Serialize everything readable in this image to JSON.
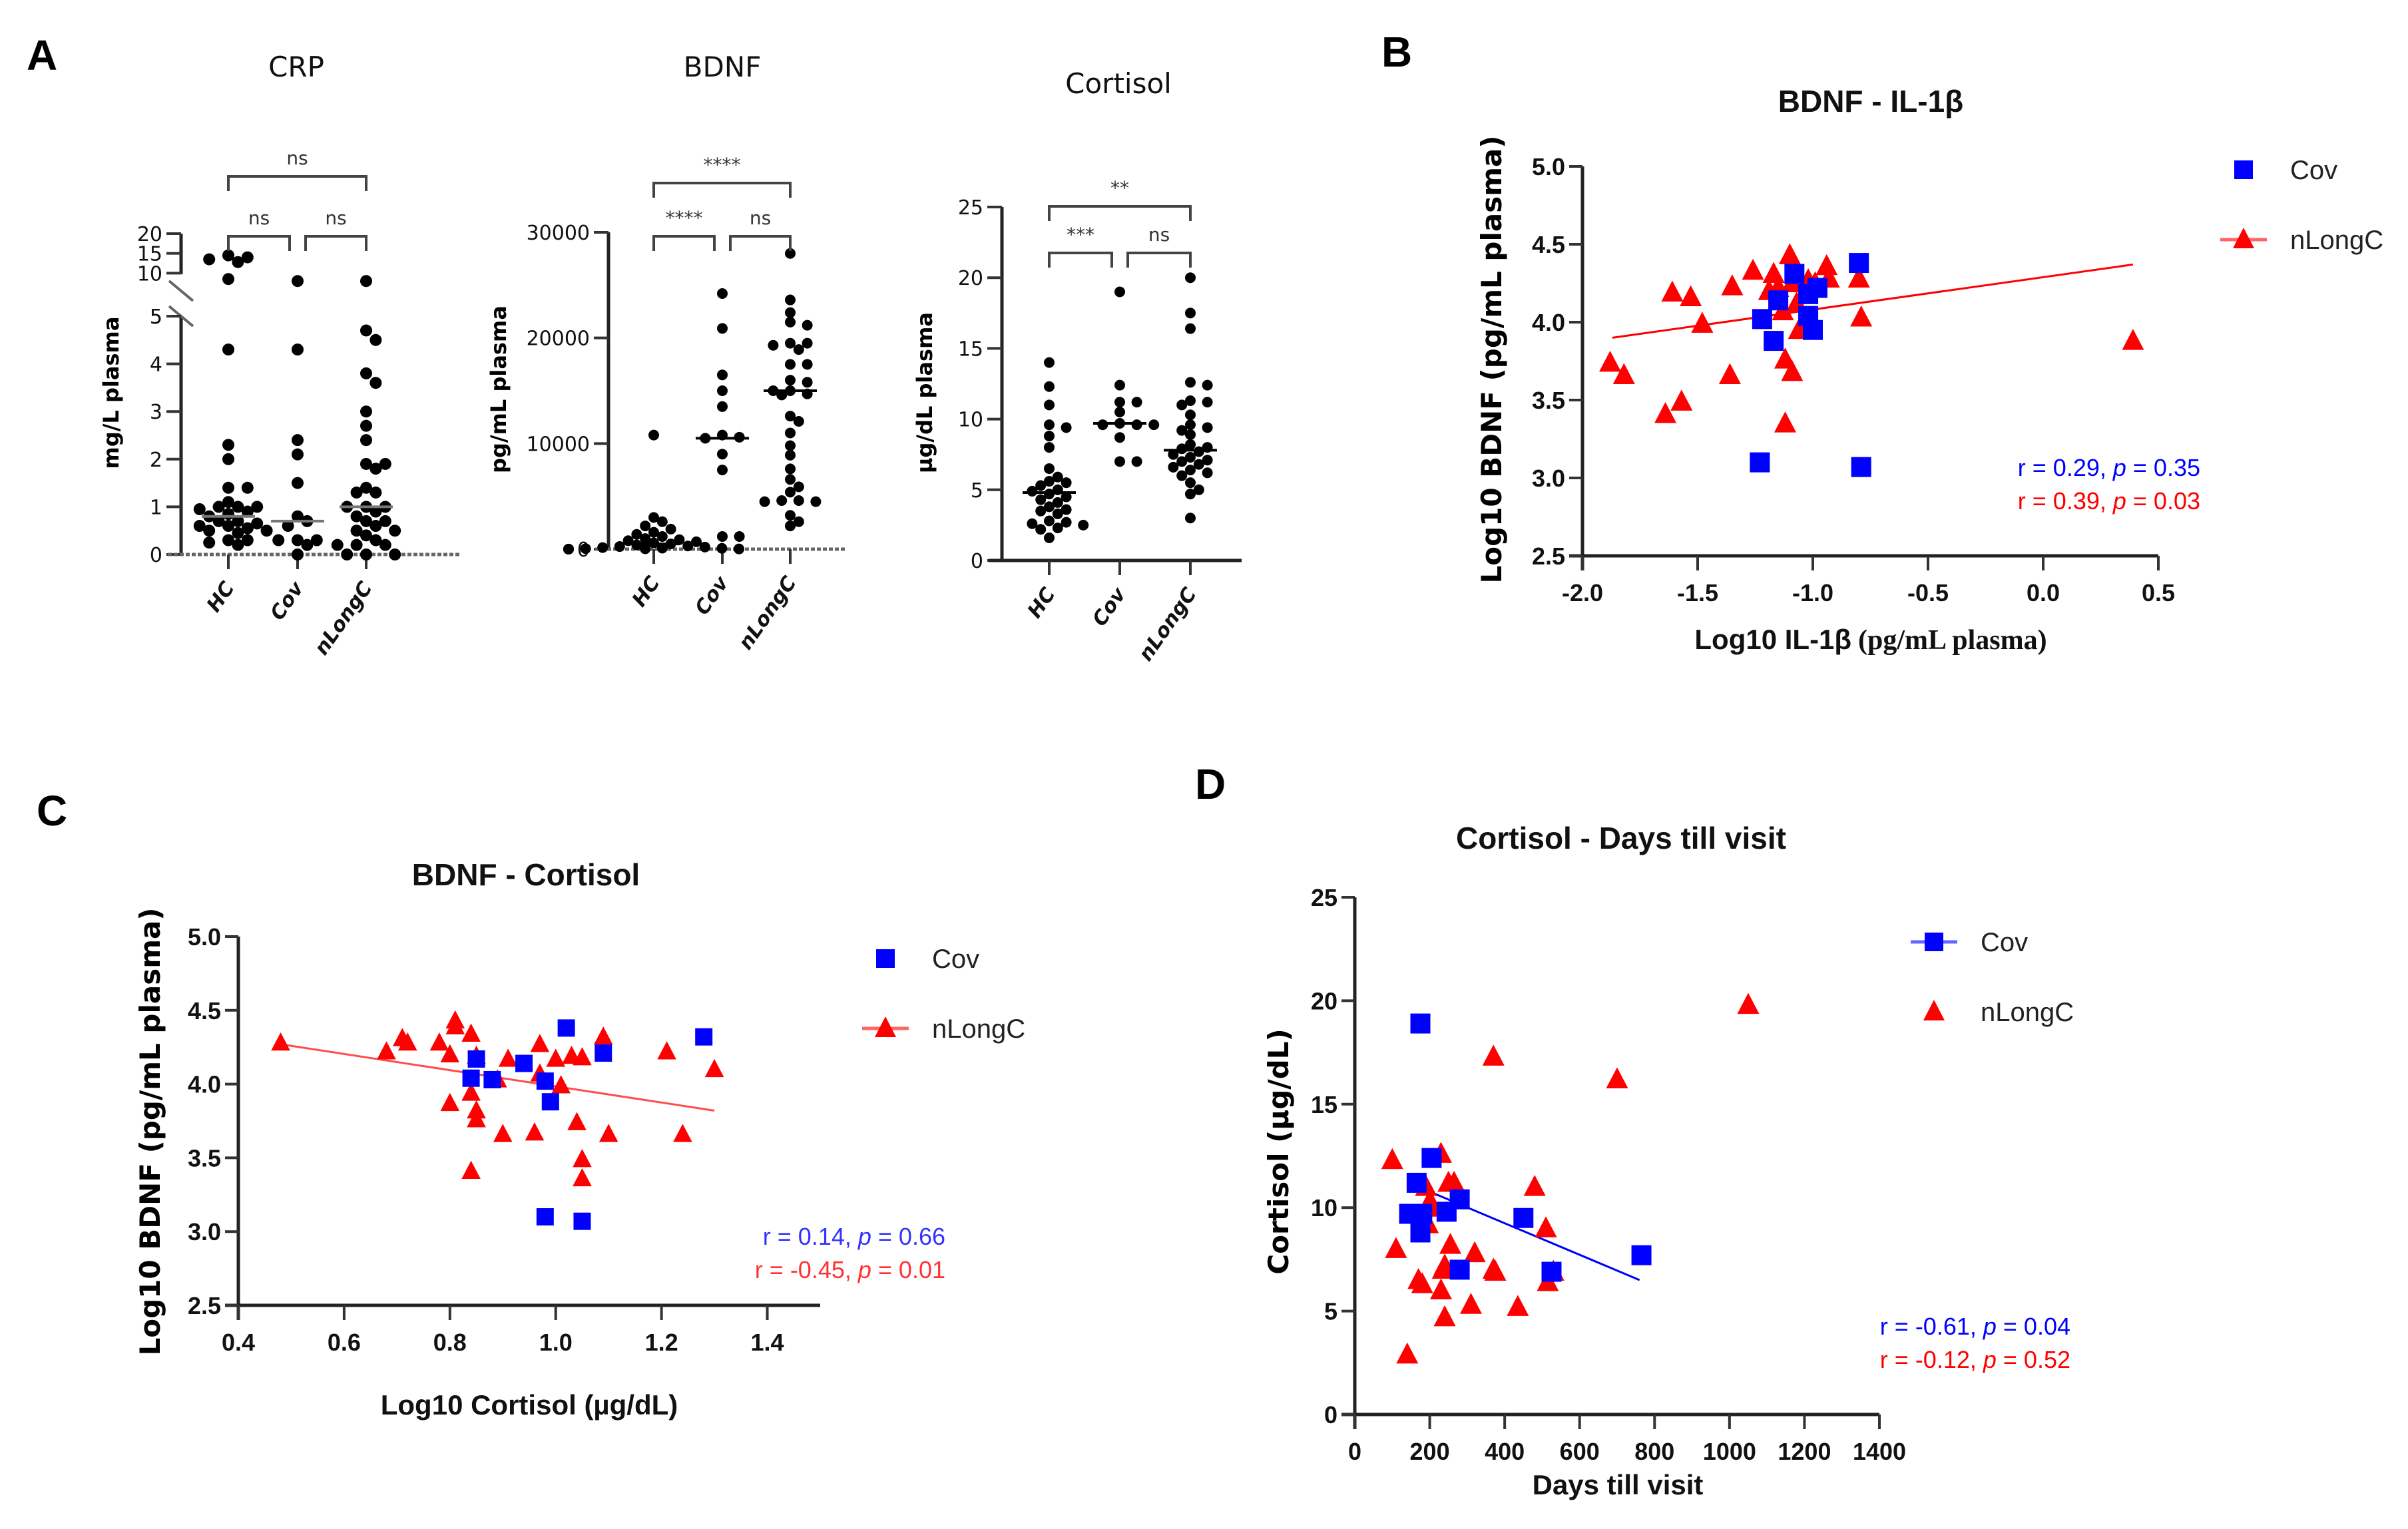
{
  "figure": {
    "panel_letters": [
      "A",
      "B",
      "C",
      "D"
    ],
    "colors": {
      "cov": "#0000ff",
      "nlongc": "#ff0000",
      "dots": "#000000"
    }
  },
  "chart_data": [
    {
      "id": "A1",
      "type": "scatter",
      "title": "CRP",
      "ylabel": "mg/L plasma",
      "categories": [
        "HC",
        "Cov",
        "nLongC"
      ],
      "y_ticks_lower": [
        0,
        1,
        2,
        3,
        4,
        5
      ],
      "y_ticks_upper": [
        5,
        10,
        15,
        20
      ],
      "axis_break": [
        5,
        5
      ],
      "ylim": [
        0,
        20
      ],
      "medians": [
        0.8,
        0.7,
        1.0
      ],
      "series": [
        {
          "name": "HC",
          "values": [
            14.5,
            14.0,
            13.5,
            12.8,
            8.5,
            4.3,
            2.3,
            2.0,
            1.4,
            1.4,
            1.1,
            1.0,
            1.0,
            1.0,
            0.95,
            0.9,
            0.85,
            0.8,
            0.7,
            0.7,
            0.65,
            0.6,
            0.6,
            0.55,
            0.5,
            0.5,
            0.45,
            0.3,
            0.3,
            0.25,
            0.2
          ]
        },
        {
          "name": "Cov",
          "values": [
            8.0,
            4.3,
            2.4,
            2.1,
            1.5,
            0.8,
            0.7,
            0.6,
            0.3,
            0.3,
            0.3,
            0.2,
            0.0
          ]
        },
        {
          "name": "nLongC",
          "values": [
            8.0,
            4.7,
            4.5,
            3.8,
            3.6,
            3.0,
            2.7,
            2.4,
            1.9,
            1.9,
            1.8,
            1.4,
            1.3,
            1.3,
            1.0,
            1.0,
            1.0,
            0.9,
            0.8,
            0.7,
            0.7,
            0.6,
            0.5,
            0.5,
            0.4,
            0.3,
            0.2,
            0.2,
            0.2,
            0.0,
            0.0,
            0.0
          ]
        }
      ],
      "comparisons": [
        {
          "groups": [
            "HC",
            "nLongC"
          ],
          "label": "ns"
        },
        {
          "groups": [
            "HC",
            "Cov"
          ],
          "label": "ns"
        },
        {
          "groups": [
            "Cov",
            "nLongC"
          ],
          "label": "ns"
        }
      ]
    },
    {
      "id": "A2",
      "type": "scatter",
      "title": "BDNF",
      "ylabel": "pg/mL plasma",
      "categories": [
        "HC",
        "Cov",
        "nLongC"
      ],
      "y_ticks": [
        0,
        10000,
        20000,
        30000
      ],
      "ylim": [
        0,
        30000
      ],
      "medians": [
        500,
        10500,
        15000
      ],
      "series": [
        {
          "name": "HC",
          "values": [
            10800,
            3000,
            2600,
            2200,
            1900,
            1600,
            1400,
            1200,
            1000,
            900,
            800,
            700,
            600,
            500,
            400,
            300,
            250,
            200,
            150,
            100,
            80,
            50,
            30,
            20,
            10,
            0,
            0,
            0
          ]
        },
        {
          "name": "Cov",
          "values": [
            24200,
            20900,
            16500,
            15000,
            13500,
            10800,
            10600,
            10500,
            9000,
            7500,
            1200,
            1200
          ]
        },
        {
          "name": "nLongC",
          "values": [
            28000,
            23600,
            22400,
            21500,
            21200,
            19500,
            19500,
            19300,
            18900,
            17500,
            17500,
            16000,
            15800,
            15000,
            15000,
            14700,
            14600,
            12600,
            12100,
            11000,
            9800,
            8900,
            7600,
            6600,
            5900,
            5400,
            4600,
            4600,
            4500,
            4500,
            3200,
            2600,
            2200
          ]
        }
      ],
      "comparisons": [
        {
          "groups": [
            "HC",
            "nLongC"
          ],
          "label": "****"
        },
        {
          "groups": [
            "HC",
            "Cov"
          ],
          "label": "****"
        },
        {
          "groups": [
            "Cov",
            "nLongC"
          ],
          "label": "ns"
        }
      ]
    },
    {
      "id": "A3",
      "type": "scatter",
      "title": "Cortisol",
      "ylabel": "µg/dL plasma",
      "categories": [
        "HC",
        "Cov",
        "nLongC"
      ],
      "y_ticks": [
        0,
        5,
        10,
        15,
        20,
        25
      ],
      "ylim": [
        0,
        25
      ],
      "medians": [
        4.8,
        9.7,
        7.8
      ],
      "series": [
        {
          "name": "HC",
          "values": [
            14.0,
            12.3,
            11.0,
            9.6,
            9.4,
            8.8,
            8.0,
            6.5,
            5.9,
            5.6,
            5.5,
            5.3,
            5.0,
            4.9,
            4.7,
            4.5,
            4.3,
            4.1,
            3.8,
            3.6,
            3.5,
            3.3,
            2.8,
            2.7,
            2.6,
            2.5,
            2.3,
            2.2,
            1.6
          ]
        },
        {
          "name": "Cov",
          "values": [
            19.0,
            12.4,
            11.2,
            11.2,
            10.5,
            9.7,
            9.6,
            9.6,
            9.6,
            8.7,
            7.0,
            7.0
          ]
        },
        {
          "name": "nLongC",
          "values": [
            20.0,
            17.5,
            16.4,
            12.6,
            12.4,
            11.3,
            11.2,
            11.0,
            10.3,
            9.6,
            9.4,
            9.2,
            8.9,
            8.2,
            8.0,
            7.9,
            7.7,
            7.5,
            7.3,
            7.1,
            7.0,
            6.8,
            6.6,
            6.4,
            6.2,
            6.0,
            5.5,
            5.0,
            4.7,
            3.0
          ]
        }
      ],
      "comparisons": [
        {
          "groups": [
            "HC",
            "nLongC"
          ],
          "label": "**"
        },
        {
          "groups": [
            "HC",
            "Cov"
          ],
          "label": "***"
        },
        {
          "groups": [
            "Cov",
            "nLongC"
          ],
          "label": "ns"
        }
      ]
    },
    {
      "id": "B",
      "type": "scatter",
      "title": "BDNF - IL-1β",
      "xlabel_main": "Log10 IL-1β",
      "xlabel_unit": "(pg/mL plasma)",
      "ylabel": "Log10 BDNF (pg/mL plasma)",
      "xlim": [
        -2.0,
        0.5
      ],
      "ylim": [
        2.5,
        5.0
      ],
      "x_ticks": [
        -2.0,
        -1.5,
        -1.0,
        -0.5,
        0.0,
        0.5
      ],
      "y_ticks": [
        2.5,
        3.0,
        3.5,
        4.0,
        4.5,
        5.0
      ],
      "legend": {
        "position": "top-right",
        "entries": [
          "Cov",
          "nLongC"
        ]
      },
      "series": [
        {
          "name": "Cov",
          "marker": "square",
          "color": "#0000ff",
          "fit": null,
          "points": [
            [
              -1.23,
              3.1
            ],
            [
              -0.79,
              3.07
            ],
            [
              -1.22,
              4.02
            ],
            [
              -1.17,
              3.88
            ],
            [
              -1.15,
              4.14
            ],
            [
              -1.08,
              4.31
            ],
            [
              -1.02,
              4.18
            ],
            [
              -0.98,
              4.22
            ],
            [
              -1.02,
              4.04
            ],
            [
              -1.0,
              3.95
            ],
            [
              -0.8,
              4.38
            ]
          ]
        },
        {
          "name": "nLongC",
          "marker": "triangle",
          "color": "#ff0000",
          "fit": [
            [
              -1.87,
              3.9
            ],
            [
              0.39,
              4.37
            ]
          ],
          "points": [
            [
              -1.88,
              3.74
            ],
            [
              -1.82,
              3.66
            ],
            [
              -1.64,
              3.41
            ],
            [
              -1.57,
              3.49
            ],
            [
              -1.61,
              4.19
            ],
            [
              -1.53,
              4.16
            ],
            [
              -1.48,
              3.99
            ],
            [
              -1.36,
              3.66
            ],
            [
              -1.35,
              4.23
            ],
            [
              -1.26,
              4.33
            ],
            [
              -1.19,
              4.2
            ],
            [
              -1.17,
              4.31
            ],
            [
              -1.15,
              4.22
            ],
            [
              -1.12,
              3.76
            ],
            [
              -1.12,
              3.35
            ],
            [
              -1.1,
              4.43
            ],
            [
              -1.09,
              3.68
            ],
            [
              -1.07,
              4.12
            ],
            [
              -1.06,
              3.95
            ],
            [
              -1.02,
              4.27
            ],
            [
              -0.99,
              4.25
            ],
            [
              -0.94,
              4.36
            ],
            [
              -0.93,
              4.28
            ],
            [
              -0.8,
              4.28
            ],
            [
              -0.79,
              4.03
            ],
            [
              -1.13,
              4.07
            ],
            [
              -1.09,
              4.25
            ],
            [
              0.39,
              3.88
            ]
          ]
        }
      ],
      "annotations": [
        {
          "text": "r = 0.29, ",
          "p": "p",
          "rest": " = 0.35",
          "color": "#0000ff"
        },
        {
          "text": "r = 0.39, ",
          "p": "p",
          "rest": " = 0.03",
          "color": "#ff0000"
        }
      ]
    },
    {
      "id": "C",
      "type": "scatter",
      "title": "BDNF - Cortisol",
      "xlabel": "Log10 Cortisol (µg/dL)",
      "ylabel": "Log10 BDNF (pg/mL plasma)",
      "xlim": [
        0.4,
        1.5
      ],
      "ylim": [
        2.5,
        5.0
      ],
      "x_ticks": [
        0.4,
        0.6,
        0.8,
        1.0,
        1.2,
        1.4
      ],
      "y_ticks": [
        2.5,
        3.0,
        3.5,
        4.0,
        4.5,
        5.0
      ],
      "legend": {
        "position": "top-right",
        "entries": [
          "Cov",
          "nLongC"
        ]
      },
      "series": [
        {
          "name": "Cov",
          "marker": "square",
          "color": "#0000ff",
          "fit": null,
          "points": [
            [
              0.84,
              4.04
            ],
            [
              0.85,
              4.17
            ],
            [
              0.88,
              4.03
            ],
            [
              0.94,
              4.14
            ],
            [
              0.98,
              4.02
            ],
            [
              0.99,
              3.88
            ],
            [
              1.02,
              4.38
            ],
            [
              1.09,
              4.21
            ],
            [
              1.28,
              4.32
            ],
            [
              0.98,
              3.1
            ],
            [
              1.05,
              3.07
            ]
          ]
        },
        {
          "name": "nLongC",
          "marker": "triangle",
          "color": "#ff0000",
          "fit": [
            [
              0.48,
              4.27
            ],
            [
              1.3,
              3.82
            ]
          ],
          "points": [
            [
              0.48,
              4.28
            ],
            [
              0.68,
              4.22
            ],
            [
              0.71,
              4.31
            ],
            [
              0.72,
              4.28
            ],
            [
              0.78,
              4.28
            ],
            [
              0.8,
              3.87
            ],
            [
              0.8,
              4.2
            ],
            [
              0.81,
              4.39
            ],
            [
              0.81,
              4.43
            ],
            [
              0.84,
              4.34
            ],
            [
              0.84,
              3.94
            ],
            [
              0.84,
              3.41
            ],
            [
              0.85,
              3.82
            ],
            [
              0.85,
              3.76
            ],
            [
              0.85,
              4.19
            ],
            [
              0.9,
              3.66
            ],
            [
              0.91,
              4.17
            ],
            [
              0.89,
              4.03
            ],
            [
              0.96,
              3.67
            ],
            [
              0.97,
              4.27
            ],
            [
              0.97,
              4.07
            ],
            [
              1.0,
              4.17
            ],
            [
              1.01,
              3.99
            ],
            [
              1.03,
              4.19
            ],
            [
              1.04,
              3.74
            ],
            [
              1.05,
              4.18
            ],
            [
              1.05,
              3.49
            ],
            [
              1.05,
              3.36
            ],
            [
              1.09,
              4.32
            ],
            [
              1.1,
              3.66
            ],
            [
              1.21,
              4.22
            ],
            [
              1.24,
              3.66
            ],
            [
              1.3,
              4.1
            ]
          ]
        }
      ],
      "annotations": [
        {
          "text": "r = 0.14, ",
          "p": "p",
          "rest": " = 0.66",
          "color": "#3333ff"
        },
        {
          "text": "r = -0.45, ",
          "p": "p",
          "rest": " = 0.01",
          "color": "#ff3333"
        }
      ]
    },
    {
      "id": "D",
      "type": "scatter",
      "title": "Cortisol - Days till visit",
      "xlabel": "Days till visit",
      "ylabel": "Cortisol (µg/dL)",
      "xlim": [
        0,
        1400
      ],
      "ylim": [
        0,
        25
      ],
      "x_ticks": [
        0,
        200,
        400,
        600,
        800,
        1000,
        1200,
        1400
      ],
      "y_ticks": [
        0,
        5,
        10,
        15,
        20,
        25
      ],
      "legend": {
        "position": "top-right",
        "entries": [
          "Cov",
          "nLongC"
        ]
      },
      "series": [
        {
          "name": "Cov",
          "marker": "square",
          "color": "#0000ff",
          "fit": [
            [
              170,
              11.0
            ],
            [
              760,
              6.5
            ]
          ],
          "points": [
            [
              175,
              18.9
            ],
            [
              205,
              12.4
            ],
            [
              165,
              11.2
            ],
            [
              145,
              9.7
            ],
            [
              180,
              9.7
            ],
            [
              175,
              8.8
            ],
            [
              245,
              9.8
            ],
            [
              280,
              10.4
            ],
            [
              280,
              7.0
            ],
            [
              450,
              9.5
            ],
            [
              525,
              6.9
            ],
            [
              765,
              7.7
            ]
          ]
        },
        {
          "name": "nLongC",
          "marker": "triangle",
          "color": "#ff0000",
          "fit": null,
          "points": [
            [
              100,
              12.3
            ],
            [
              110,
              8.0
            ],
            [
              140,
              2.9
            ],
            [
              170,
              6.5
            ],
            [
              180,
              6.3
            ],
            [
              190,
              11.0
            ],
            [
              195,
              9.2
            ],
            [
              200,
              10.3
            ],
            [
              210,
              10.0
            ],
            [
              230,
              12.6
            ],
            [
              230,
              6.0
            ],
            [
              235,
              7.0
            ],
            [
              240,
              4.7
            ],
            [
              240,
              7.2
            ],
            [
              250,
              11.2
            ],
            [
              255,
              8.2
            ],
            [
              265,
              11.2
            ],
            [
              310,
              5.3
            ],
            [
              320,
              7.8
            ],
            [
              370,
              17.3
            ],
            [
              370,
              7.0
            ],
            [
              375,
              6.9
            ],
            [
              435,
              5.2
            ],
            [
              480,
              11.0
            ],
            [
              510,
              9.0
            ],
            [
              515,
              6.4
            ],
            [
              530,
              6.9
            ],
            [
              700,
              16.2
            ],
            [
              1050,
              19.8
            ]
          ]
        }
      ],
      "annotations": [
        {
          "text": "r = -0.61, ",
          "p": "p",
          "rest": " = 0.04",
          "color": "#0000ff"
        },
        {
          "text": "r = -0.12, ",
          "p": "p",
          "rest": " = 0.52",
          "color": "#ff0000"
        }
      ]
    }
  ]
}
